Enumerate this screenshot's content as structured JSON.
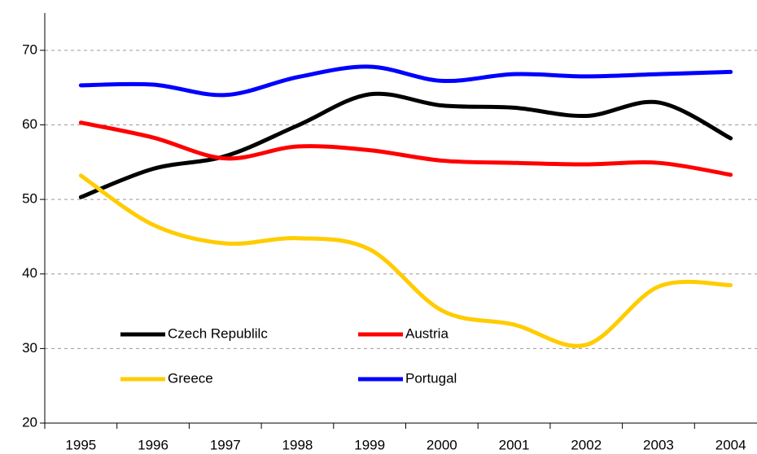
{
  "chart_data": {
    "type": "line",
    "categories": [
      "1995",
      "1996",
      "1997",
      "1998",
      "1999",
      "2000",
      "2001",
      "2002",
      "2003",
      "2004"
    ],
    "series": [
      {
        "name": "Czech Republilc",
        "color": "#000000",
        "values": [
          50.3,
          54.1,
          55.8,
          59.9,
          64.1,
          62.6,
          62.3,
          61.2,
          63.0,
          58.2
        ]
      },
      {
        "name": "Austria",
        "color": "#ff0000",
        "values": [
          60.3,
          58.3,
          55.5,
          57.1,
          56.6,
          55.2,
          54.9,
          54.7,
          54.9,
          53.3
        ]
      },
      {
        "name": "Greece",
        "color": "#ffcc00",
        "values": [
          53.2,
          46.6,
          44.1,
          44.8,
          43.3,
          35.1,
          33.2,
          30.5,
          38.3,
          38.5
        ]
      },
      {
        "name": "Portugal",
        "color": "#0000ff",
        "values": [
          65.3,
          65.4,
          64.0,
          66.4,
          67.8,
          65.9,
          66.8,
          66.5,
          66.8,
          67.1
        ]
      }
    ],
    "ylim": [
      20,
      75
    ],
    "yticks": [
      20,
      30,
      40,
      50,
      60,
      70
    ],
    "grid": true,
    "legend": "lower left"
  }
}
